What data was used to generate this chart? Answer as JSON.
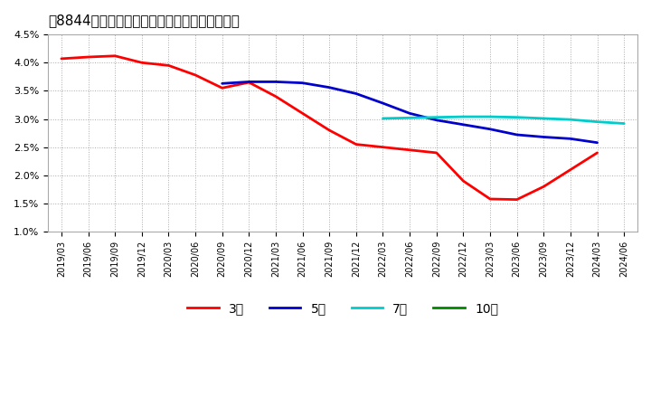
{
  "title": "[8844]  当期純利益マージンの平均値の推移",
  "x_labels": [
    "2019/03",
    "2019/06",
    "2019/09",
    "2019/12",
    "2020/03",
    "2020/06",
    "2020/09",
    "2020/12",
    "2021/03",
    "2021/06",
    "2021/09",
    "2021/12",
    "2022/03",
    "2022/06",
    "2022/09",
    "2022/12",
    "2023/03",
    "2023/06",
    "2023/09",
    "2023/12",
    "2024/03",
    "2024/06"
  ],
  "series": {
    "3年": {
      "color": "#ff0000",
      "linewidth": 2.0,
      "values": [
        4.07,
        4.1,
        4.12,
        4.0,
        3.95,
        3.78,
        3.55,
        3.65,
        3.4,
        3.1,
        2.8,
        2.55,
        2.5,
        2.45,
        2.4,
        1.9,
        1.58,
        1.57,
        1.8,
        2.1,
        2.4,
        null
      ]
    },
    "5年": {
      "color": "#0000cc",
      "linewidth": 2.0,
      "values": [
        null,
        null,
        null,
        null,
        null,
        null,
        3.63,
        3.66,
        3.66,
        3.64,
        3.56,
        3.45,
        3.28,
        3.1,
        2.98,
        2.9,
        2.82,
        2.72,
        2.68,
        2.65,
        2.58,
        null
      ]
    },
    "7年": {
      "color": "#00cccc",
      "linewidth": 2.0,
      "values": [
        null,
        null,
        null,
        null,
        null,
        null,
        null,
        null,
        null,
        null,
        null,
        null,
        3.01,
        3.02,
        3.03,
        3.04,
        3.04,
        3.03,
        3.01,
        2.99,
        2.95,
        2.92
      ]
    },
    "10年": {
      "color": "#008800",
      "linewidth": 2.0,
      "values": [
        null,
        null,
        null,
        null,
        null,
        null,
        null,
        null,
        null,
        null,
        null,
        null,
        null,
        null,
        null,
        null,
        null,
        null,
        null,
        null,
        null,
        null
      ]
    }
  },
  "ylim": [
    1.0,
    4.5
  ],
  "yticks": [
    1.0,
    1.5,
    2.0,
    2.5,
    3.0,
    3.5,
    4.0,
    4.5
  ],
  "ytick_labels": [
    "1.0%",
    "1.5%",
    "2.0%",
    "2.5%",
    "3.0%",
    "3.5%",
    "4.0%",
    "4.5%"
  ],
  "bg_color": "#ffffff",
  "plot_bg_color": "#ffffff",
  "grid_color": "#aaaaaa",
  "legend_labels": [
    "3年",
    "5年",
    "7年",
    "10年"
  ],
  "legend_colors": [
    "#ff0000",
    "#0000cc",
    "#00cccc",
    "#008800"
  ]
}
